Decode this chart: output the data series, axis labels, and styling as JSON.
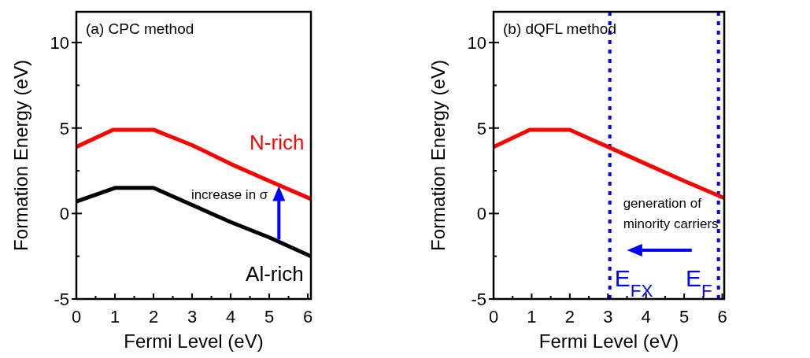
{
  "chart_data": [
    {
      "type": "line",
      "xlabel": "Fermi Level (eV)",
      "ylabel": "Formation Energy (eV)",
      "xlim": [
        0,
        6.08
      ],
      "ylim": [
        -5,
        11.8
      ],
      "xticks": [
        0,
        1,
        2,
        3,
        4,
        5,
        6
      ],
      "yticks": [
        -5,
        0,
        5,
        10
      ],
      "annotations": [
        "(a) CPC method",
        {
          "text": "increase in σ",
          "x": 5.25,
          "y": 1.6
        }
      ],
      "grid": false,
      "series": [
        {
          "name": "N-rich",
          "color": "#ff0000",
          "x": [
            0,
            0.95,
            2,
            3,
            4,
            5,
            6.08
          ],
          "values": [
            3.9,
            4.9,
            4.9,
            4.0,
            2.9,
            1.9,
            0.85
          ]
        },
        {
          "name": "Al-rich",
          "color": "#000000",
          "x": [
            0,
            1,
            2,
            3,
            4,
            5,
            6.08
          ],
          "values": [
            0.7,
            1.5,
            1.5,
            0.5,
            -0.5,
            -1.4,
            -2.5
          ]
        }
      ]
    },
    {
      "type": "line",
      "xlabel": "Fermi Level (eV)",
      "ylabel": "Formation Energy (eV)",
      "xlim": [
        0,
        6.05
      ],
      "ylim": [
        -5,
        11.8
      ],
      "xticks": [
        0,
        1,
        2,
        3,
        4,
        5,
        6
      ],
      "yticks": [
        -5,
        0,
        5,
        10
      ],
      "annotations": [
        "(b) dQFL method",
        "generation of minority carriers"
      ],
      "grid": false,
      "series": [
        {
          "color": "#ff0000",
          "x": [
            0,
            0.95,
            2,
            3,
            4,
            5,
            6.05
          ],
          "values": [
            3.9,
            4.9,
            4.9,
            3.9,
            2.9,
            1.9,
            0.9
          ]
        }
      ],
      "ref_lines": [
        {
          "axis": "x",
          "value": 3.05,
          "label": "E$_{FX}$",
          "color": "#0000ff",
          "line_style": "dotted"
        },
        {
          "axis": "x",
          "value": 5.9,
          "label": "E$_{F}$",
          "color": "#0000ff",
          "line_style": "dotted"
        }
      ]
    }
  ]
}
